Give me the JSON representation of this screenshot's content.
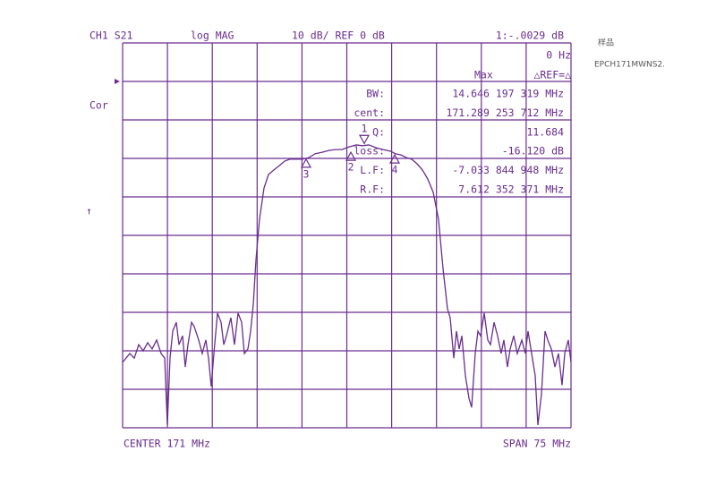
{
  "chart_data": {
    "type": "line",
    "header": [
      "CH1 S21",
      "log MAG",
      "10 dB/ REF 0 dB",
      "1:-.0029 dB",
      "0 Hz",
      "Max",
      "△REF=△"
    ],
    "side_label": "Cor",
    "readouts": [
      {
        "label": "BW:",
        "value": "14.646 197 319 MHz"
      },
      {
        "label": "cent:",
        "value": "171.289 253 712 MHz"
      },
      {
        "label": "Q:",
        "value": "11.684"
      },
      {
        "label": "loss:",
        "value": "-16.120 dB"
      },
      {
        "label": "L.F:",
        "value": "-7.033 844 948 MHz"
      },
      {
        "label": "R.F:",
        "value": "7.612 352 371 MHz"
      }
    ],
    "center_label": "CENTER 171 MHz",
    "span_label": "SPAN 75 MHz",
    "handwritten": [
      "样品",
      "EPCH171MWNS2."
    ],
    "color": "#6a2d8f",
    "xlim": [
      133.5,
      208.5
    ],
    "xticks": [
      133.5,
      141,
      148.5,
      156,
      163.5,
      171,
      178.5,
      186,
      193.5,
      201,
      208.5
    ],
    "ylim": [
      -90,
      10
    ],
    "yticks": [
      10,
      0,
      -10,
      -20,
      -30,
      -40,
      -50,
      -60,
      -70,
      -80,
      -90
    ],
    "grid": true,
    "x": [
      133.5,
      134.7,
      135.45,
      136.19,
      136.94,
      137.69,
      138.44,
      139.19,
      139.94,
      140.54,
      140.98,
      141.43,
      141.88,
      142.48,
      142.93,
      143.53,
      143.98,
      144.43,
      145.03,
      145.48,
      146.22,
      146.82,
      147.42,
      147.87,
      148.32,
      148.77,
      149.37,
      149.97,
      150.42,
      150.87,
      151.61,
      152.21,
      152.81,
      153.41,
      153.86,
      154.46,
      154.91,
      155.36,
      155.81,
      156.4,
      157.15,
      157.9,
      158.8,
      159.7,
      160.6,
      161.49,
      162.39,
      163.59,
      164.64,
      165.69,
      166.88,
      168.08,
      169.13,
      170.18,
      171.37,
      172.57,
      173.62,
      174.67,
      175.87,
      177.06,
      178.26,
      179.16,
      180.06,
      180.95,
      181.85,
      182.75,
      183.65,
      184.55,
      185.45,
      186.34,
      187.09,
      187.84,
      188.29,
      188.89,
      189.34,
      189.79,
      190.24,
      190.84,
      191.43,
      191.88,
      192.48,
      192.93,
      193.38,
      193.98,
      194.58,
      195.03,
      195.63,
      196.22,
      196.82,
      197.27,
      197.87,
      198.32,
      198.92,
      199.52,
      200.27,
      200.87,
      201.31,
      201.91,
      202.51,
      202.96,
      203.56,
      204.16,
      204.61,
      205.21,
      205.81,
      206.4,
      207.0,
      207.45,
      208.05,
      208.5
    ],
    "values": [
      -73.0,
      -70.7,
      -71.9,
      -68.4,
      -70.0,
      -67.9,
      -69.5,
      -67.2,
      -70.7,
      -71.9,
      -89.3,
      -71.9,
      -64.9,
      -62.6,
      -68.4,
      -66.1,
      -74.2,
      -68.4,
      -62.6,
      -63.7,
      -67.2,
      -70.7,
      -67.2,
      -71.9,
      -79.3,
      -70.7,
      -60.2,
      -62.6,
      -68.4,
      -66.1,
      -61.4,
      -68.4,
      -60.2,
      -62.6,
      -70.7,
      -69.5,
      -64.9,
      -57.9,
      -46.3,
      -35.8,
      -27.7,
      -24.2,
      -23.0,
      -21.9,
      -20.7,
      -20.2,
      -20.2,
      -20.2,
      -19.8,
      -18.8,
      -18.4,
      -17.9,
      -17.7,
      -17.7,
      -17.0,
      -16.5,
      -16.7,
      -16.5,
      -17.2,
      -17.7,
      -18.1,
      -18.8,
      -19.1,
      -19.8,
      -20.2,
      -21.4,
      -23.0,
      -25.4,
      -28.8,
      -35.8,
      -48.6,
      -59.1,
      -61.4,
      -71.9,
      -64.9,
      -69.5,
      -66.1,
      -76.5,
      -82.3,
      -84.7,
      -70.7,
      -64.9,
      -66.1,
      -60.2,
      -67.2,
      -68.4,
      -62.6,
      -66.1,
      -70.7,
      -67.2,
      -74.2,
      -69.5,
      -66.1,
      -70.7,
      -67.2,
      -70.7,
      -64.9,
      -70.7,
      -76.5,
      -89.3,
      -81.2,
      -64.9,
      -67.2,
      -69.5,
      -74.2,
      -70.7,
      -78.9,
      -70.7,
      -67.2,
      -73.0
    ],
    "markers": [
      {
        "label": "1",
        "x": 173.92,
        "y": -16.1
      },
      {
        "label": "2",
        "x": 171.68,
        "y": -18.4
      },
      {
        "label": "3",
        "x": 164.19,
        "y": -20.2
      },
      {
        "label": "4",
        "x": 179.01,
        "y": -19.1
      }
    ]
  }
}
